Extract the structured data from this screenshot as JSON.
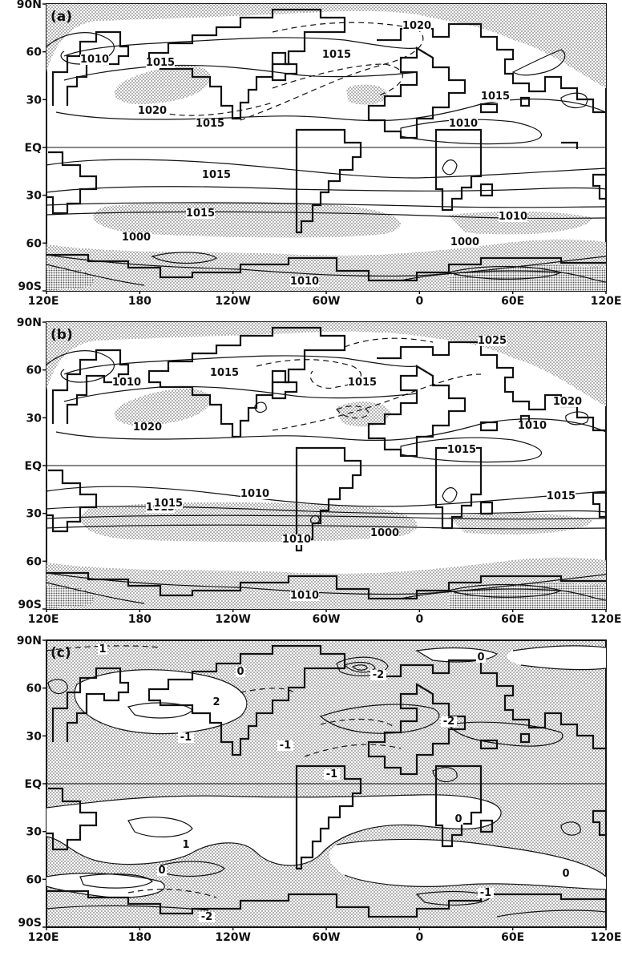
{
  "figure": {
    "x_ticks": [
      "120E",
      "180",
      "120W",
      "60W",
      "0",
      "60E",
      "120E"
    ],
    "y_ticks": [
      "90N",
      "60",
      "30",
      "EQ",
      "30",
      "60",
      "90S"
    ],
    "panels": [
      {
        "id": "a",
        "label": "(a)",
        "contour_labels": [
          "1020",
          "1010",
          "1015",
          "1015",
          "1015",
          "1020",
          "1015",
          "1010",
          "1015",
          "1015",
          "1010",
          "1000",
          "1000",
          "1010"
        ]
      },
      {
        "id": "b",
        "label": "(b)",
        "contour_labels": [
          "1025",
          "1010",
          "1015",
          "1015",
          "1020",
          "1020",
          "1010",
          "1015",
          "1010",
          "1015",
          "1015",
          "1015",
          "1010",
          "1000",
          "1010"
        ]
      },
      {
        "id": "c",
        "label": "(c)",
        "contour_labels": [
          "1",
          "0",
          "0",
          "2",
          "-2",
          "-1",
          "-2",
          "-1",
          "-1",
          "0",
          "1",
          "0",
          "0",
          "-1",
          "-2"
        ]
      }
    ]
  },
  "colors": {
    "ink": "#111111",
    "stipple": "#8a8a8a",
    "background": "#ffffff"
  }
}
